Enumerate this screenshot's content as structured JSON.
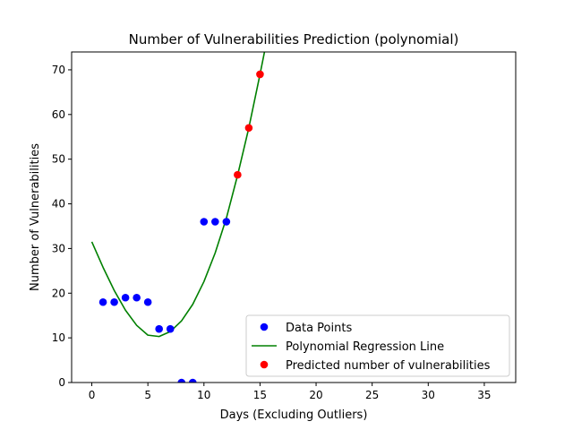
{
  "chart_data": {
    "type": "scatter",
    "title": "Number of Vulnerabilities Prediction (polynomial)",
    "xlabel": "Days (Excluding Outliers)",
    "ylabel": "Number of Vulnerabilities",
    "xlim": [
      -1.8,
      37.8
    ],
    "ylim": [
      0,
      74
    ],
    "x_ticks": [
      0,
      5,
      10,
      15,
      20,
      25,
      30,
      35
    ],
    "y_ticks": [
      0,
      10,
      20,
      30,
      40,
      50,
      60,
      70
    ],
    "grid": false,
    "legend_position": "lower-right",
    "series": [
      {
        "name": "Data Points",
        "kind": "scatter",
        "color": "#0000ff",
        "x": [
          1,
          2,
          3,
          4,
          5,
          6,
          7,
          8,
          9,
          10,
          11,
          12
        ],
        "y": [
          18,
          18,
          19,
          19,
          18,
          12,
          12,
          0,
          0,
          36,
          36,
          36
        ]
      },
      {
        "name": "Polynomial Regression Line",
        "kind": "line",
        "color": "#008000",
        "x": [
          0,
          1,
          2,
          3,
          4,
          5,
          6,
          7,
          8,
          9,
          10,
          11,
          12,
          13,
          14,
          15,
          15.5
        ],
        "y": [
          31.5,
          25.8,
          20.6,
          16.2,
          12.8,
          10.6,
          10.3,
          11.4,
          13.8,
          17.5,
          22.6,
          29.0,
          36.8,
          46.4,
          57.0,
          69.0,
          75.3
        ]
      },
      {
        "name": "Predicted number of vulnerabilities",
        "kind": "scatter",
        "color": "#ff0000",
        "x": [
          13,
          14,
          15
        ],
        "y": [
          46.5,
          57,
          69
        ]
      }
    ]
  }
}
